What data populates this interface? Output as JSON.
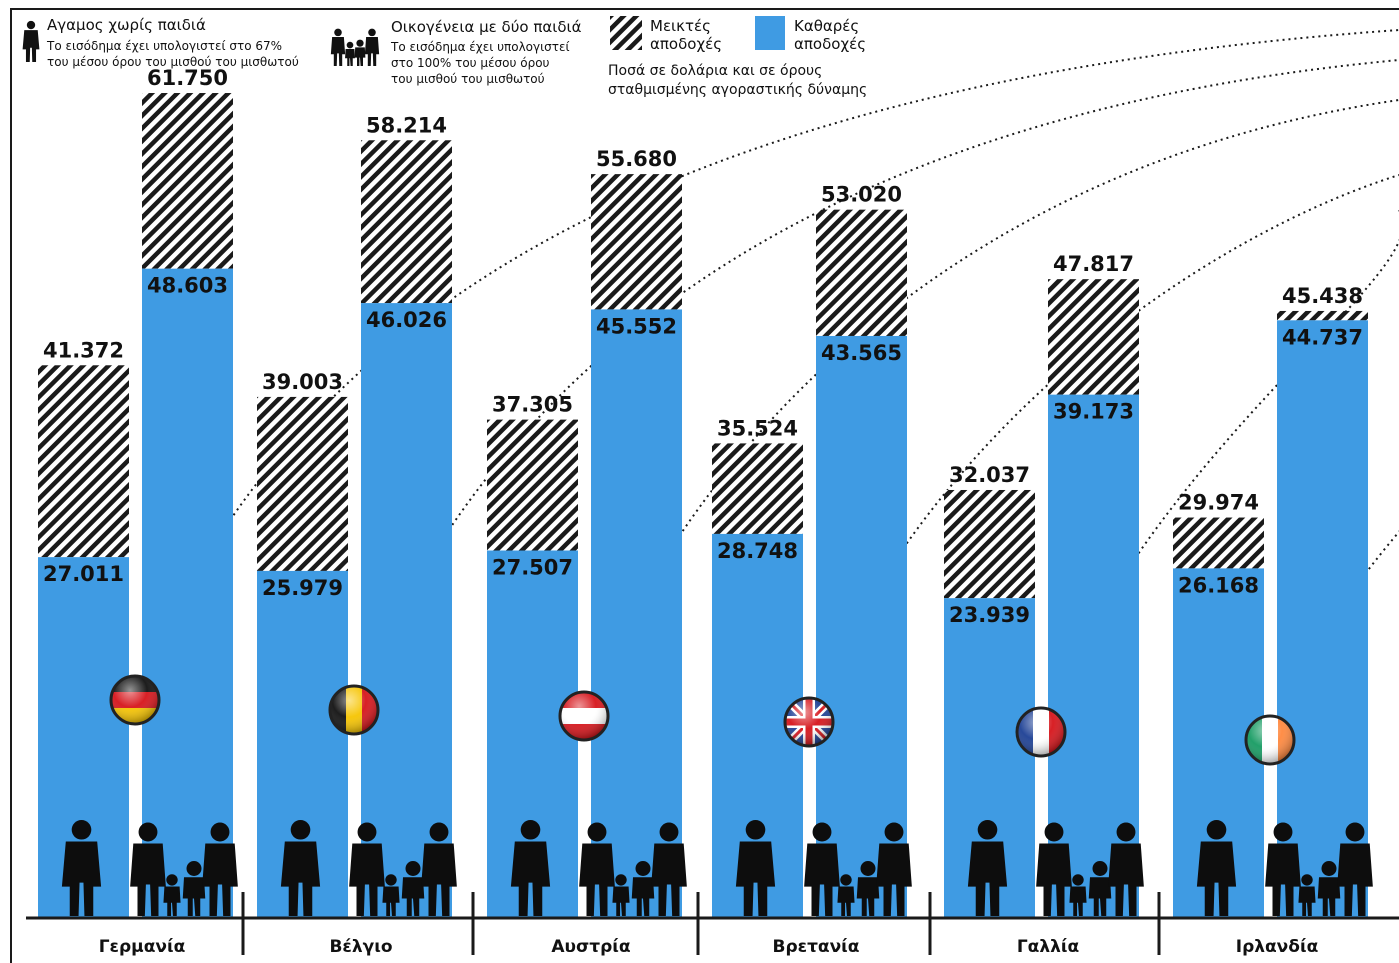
{
  "legend": {
    "single_title": "Αγαμος χωρίς παιδιά",
    "single_note_1": "Το εισόδημα έχει υπολογιστεί στο 67%",
    "single_note_2": "του μέσου όρου του μισθού του μισθωτού",
    "family_title": "Οικογένεια με δύο παιδιά",
    "family_note_1": "Το εισόδημα έχει υπολογιστεί",
    "family_note_2": "στο 100% του μέσου όρου",
    "family_note_3": "του μισθού του μισθωτού",
    "gross_label_1": "Μεικτές",
    "gross_label_2": "αποδοχές",
    "net_label_1": "Καθαρές",
    "net_label_2": "αποδοχές",
    "units_1": "Ποσά σε δολάρια και σε όρους",
    "units_2": "σταθμισμένης αγοραστικής δύναμης"
  },
  "colors": {
    "net": "#3f9be3",
    "hatch": "#1a1a1a",
    "axis": "#1a1a1a"
  },
  "chart_data": {
    "type": "bar",
    "categories": [
      "Γερμανία",
      "Βέλγιο",
      "Αυστρία",
      "Βρετανία",
      "Γαλλία",
      "Ιρλανδία"
    ],
    "series": [
      {
        "name": "Μεικτές αποδοχές",
        "group": "Αγαμος χωρίς παιδιά",
        "values": [
          41372,
          39003,
          37305,
          35524,
          32037,
          29974
        ],
        "labels": [
          "41.372",
          "39.003",
          "37.305",
          "35.524",
          "32.037",
          "29.974"
        ]
      },
      {
        "name": "Καθαρές αποδοχές",
        "group": "Αγαμος χωρίς παιδιά",
        "values": [
          27011,
          25979,
          27507,
          28748,
          23939,
          26168
        ],
        "labels": [
          "27.011",
          "25.979",
          "27.507",
          "28.748",
          "23.939",
          "26.168"
        ]
      },
      {
        "name": "Μεικτές αποδοχές",
        "group": "Οικογένεια με δύο παιδιά",
        "values": [
          61750,
          58214,
          55680,
          53020,
          47817,
          45438
        ],
        "labels": [
          "61.750",
          "58.214",
          "55.680",
          "53.020",
          "47.817",
          "45.438"
        ]
      },
      {
        "name": "Καθαρές αποδοχές",
        "group": "Οικογένεια με δύο παιδιά",
        "values": [
          48603,
          46026,
          45552,
          43565,
          39173,
          44737
        ],
        "labels": [
          "48.603",
          "46.026",
          "45.552",
          "43.565",
          "39.173",
          "44.737"
        ]
      }
    ],
    "flag_icons": [
      "flag-germany-icon",
      "flag-belgium-icon",
      "flag-austria-icon",
      "flag-uk-icon",
      "flag-france-icon",
      "flag-ireland-icon"
    ],
    "legend_placement": "top",
    "grid": false
  }
}
